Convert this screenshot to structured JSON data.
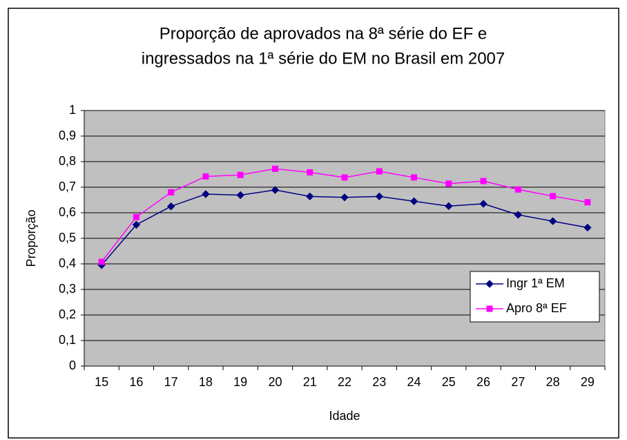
{
  "chart_data": {
    "type": "line",
    "title": [
      "Proporção de aprovados na 8ª série do EF e",
      "ingressados na 1ª série do EM no Brasil em 2007"
    ],
    "x_label": "Idade",
    "y_label": "Proporção",
    "categories": [
      "15",
      "16",
      "17",
      "18",
      "19",
      "20",
      "21",
      "22",
      "23",
      "24",
      "25",
      "26",
      "27",
      "28",
      "29"
    ],
    "series": [
      {
        "name": "Ingr 1ª EM",
        "color": "#000080",
        "marker": "diamond",
        "values": [
          0.395,
          0.553,
          0.625,
          0.673,
          0.669,
          0.689,
          0.664,
          0.66,
          0.664,
          0.645,
          0.626,
          0.635,
          0.592,
          0.567,
          0.542
        ]
      },
      {
        "name": "Apro 8ª EF",
        "color": "#ff00ff",
        "marker": "square",
        "values": [
          0.408,
          0.583,
          0.68,
          0.742,
          0.748,
          0.772,
          0.758,
          0.738,
          0.762,
          0.738,
          0.714,
          0.724,
          0.691,
          0.665,
          0.641
        ]
      }
    ],
    "ylim": [
      0,
      1
    ],
    "yticks": [
      0,
      {
        "value": 0.1,
        "label": "0,1"
      },
      {
        "value": 0.2,
        "label": "0,2"
      },
      {
        "value": 0.3,
        "label": "0,3"
      },
      {
        "value": 0.4,
        "label": "0,4"
      },
      {
        "value": 0.5,
        "label": "0,5"
      },
      {
        "value": 0.6,
        "label": "0,6"
      },
      {
        "value": 0.7,
        "label": "0,7"
      },
      {
        "value": 0.8,
        "label": "0,8"
      },
      {
        "value": 0.9,
        "label": "0,9"
      },
      1
    ],
    "grid": true,
    "plot_background": "#c0c0c0",
    "legend": "right"
  }
}
